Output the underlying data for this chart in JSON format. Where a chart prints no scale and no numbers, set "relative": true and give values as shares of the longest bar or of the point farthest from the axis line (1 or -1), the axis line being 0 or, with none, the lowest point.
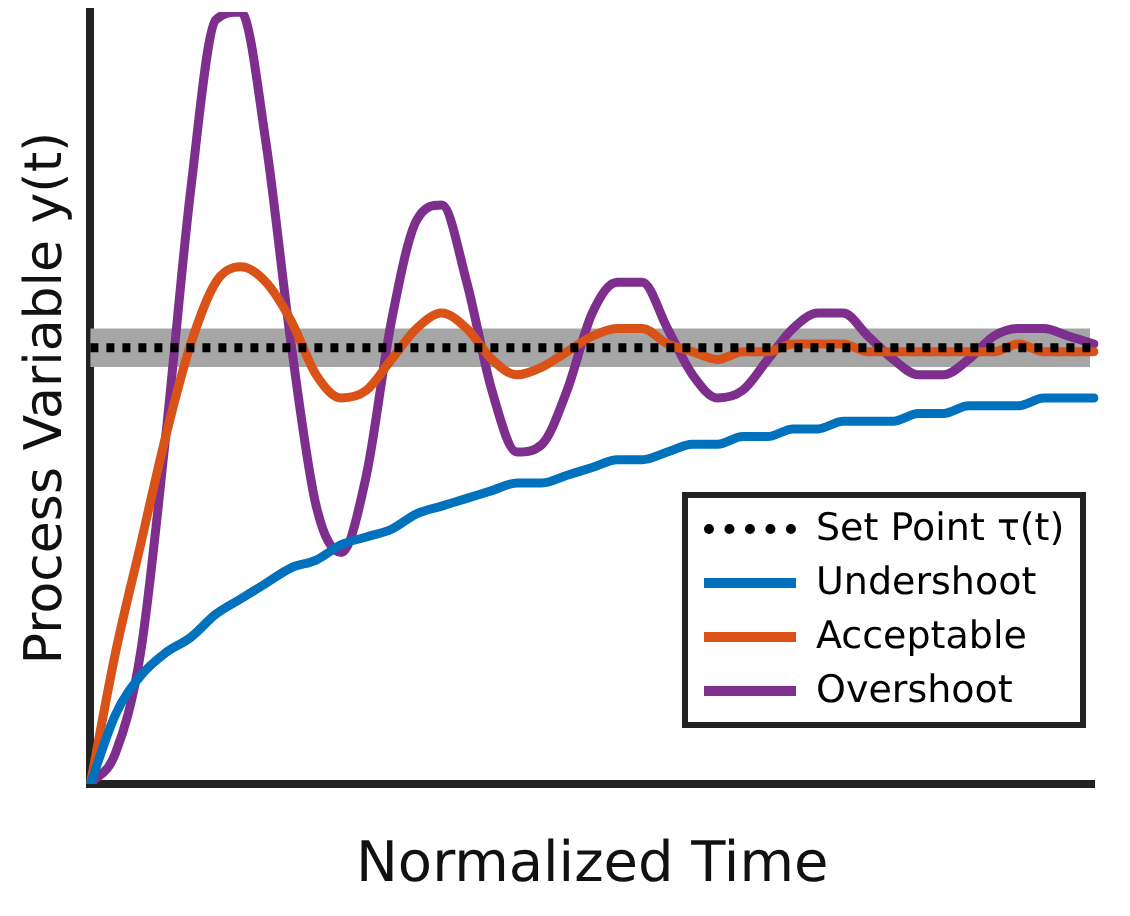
{
  "chart_data": {
    "type": "line",
    "relative": true,
    "xlabel": "Normalized Time",
    "ylabel": "Process Variable y(t)",
    "grid": false,
    "legend": "bottom right",
    "marker": "none",
    "categories": [
      null,
      null,
      null,
      null,
      null,
      null,
      null,
      null,
      null,
      null,
      null,
      null,
      null,
      null,
      null,
      null,
      null,
      null,
      null,
      null,
      null,
      null,
      null,
      null,
      null,
      null,
      null,
      null,
      null,
      null,
      null,
      null,
      null,
      null,
      null,
      null,
      null,
      null,
      null,
      null,
      null
    ],
    "bands": [
      {
        "axis": "y",
        "from": 0.54,
        "to": 0.59,
        "color": "#a6a6a6"
      }
    ],
    "series": [
      {
        "name": "Set Point τ(t)",
        "color": "#000000",
        "line_style": "dotted",
        "values": [
          0.565,
          0.565,
          0.565,
          0.565,
          0.565,
          0.565,
          0.565,
          0.565,
          0.565,
          0.565,
          0.565,
          0.565,
          0.565,
          0.565,
          0.565,
          0.565,
          0.565,
          0.565,
          0.565,
          0.565,
          0.565,
          0.565,
          0.565,
          0.565,
          0.565,
          0.565,
          0.565,
          0.565,
          0.565,
          0.565,
          0.565,
          0.565,
          0.565,
          0.565,
          0.565,
          0.565,
          0.565,
          0.565,
          0.565,
          0.565,
          0.565
        ]
      },
      {
        "name": "Undershoot",
        "color": "#0072bd",
        "values": [
          0,
          0.09,
          0.14,
          0.17,
          0.19,
          0.22,
          0.24,
          0.26,
          0.28,
          0.29,
          0.31,
          0.32,
          0.33,
          0.35,
          0.36,
          0.37,
          0.38,
          0.39,
          0.39,
          0.4,
          0.41,
          0.42,
          0.42,
          0.43,
          0.44,
          0.44,
          0.45,
          0.45,
          0.46,
          0.46,
          0.47,
          0.47,
          0.47,
          0.48,
          0.48,
          0.49,
          0.49,
          0.49,
          0.5,
          0.5,
          0.5
        ]
      },
      {
        "name": "Acceptable",
        "color": "#d95319",
        "values": [
          0,
          0.17,
          0.31,
          0.45,
          0.57,
          0.65,
          0.67,
          0.65,
          0.6,
          0.53,
          0.5,
          0.51,
          0.55,
          0.59,
          0.61,
          0.59,
          0.55,
          0.53,
          0.54,
          0.56,
          0.58,
          0.59,
          0.59,
          0.57,
          0.56,
          0.55,
          0.56,
          0.56,
          0.57,
          0.57,
          0.57,
          0.56,
          0.56,
          0.56,
          0.56,
          0.56,
          0.56,
          0.57,
          0.56,
          0.56,
          0.56
        ]
      },
      {
        "name": "Overshoot",
        "color": "#7e2f8e",
        "values": [
          0,
          0.04,
          0.17,
          0.45,
          0.77,
          0.99,
          1,
          0.83,
          0.57,
          0.36,
          0.3,
          0.4,
          0.6,
          0.73,
          0.75,
          0.65,
          0.51,
          0.43,
          0.44,
          0.51,
          0.61,
          0.65,
          0.65,
          0.59,
          0.53,
          0.5,
          0.51,
          0.55,
          0.59,
          0.61,
          0.61,
          0.58,
          0.55,
          0.53,
          0.53,
          0.55,
          0.58,
          0.59,
          0.59,
          0.58,
          0.57
        ]
      }
    ]
  }
}
